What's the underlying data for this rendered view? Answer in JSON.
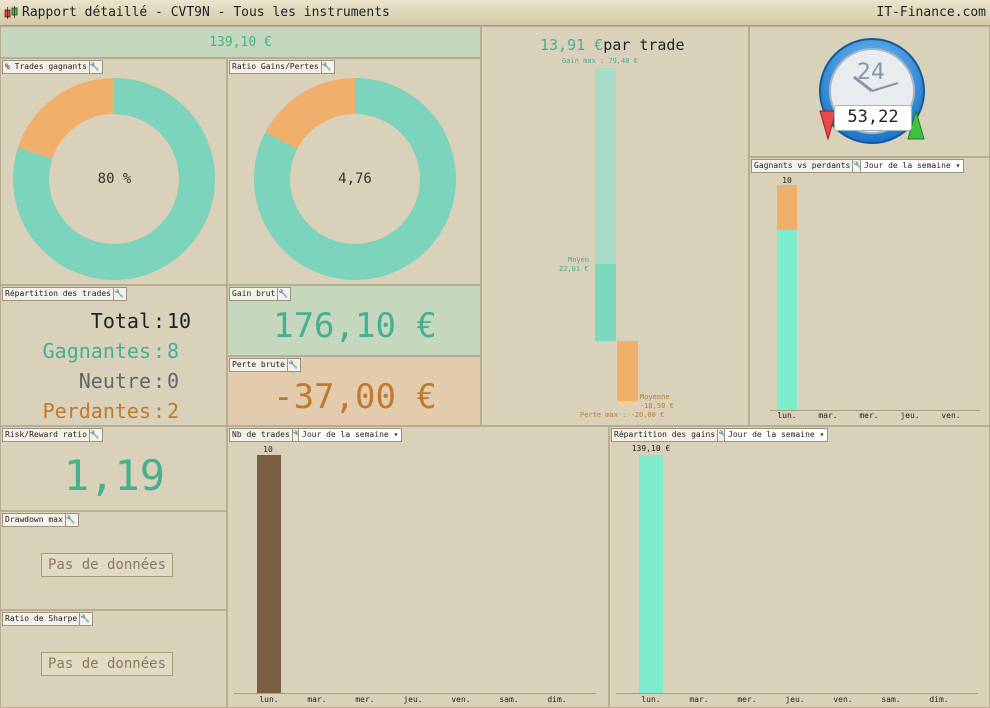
{
  "window": {
    "title": "Rapport détaillé - CVT9N - Tous les instruments",
    "brand": "IT-Finance.com"
  },
  "header_value": "139,10 €",
  "colors": {
    "green": "#46b090",
    "orange": "#c07a30",
    "gray": "#666666",
    "mint": "#7cd4bc",
    "peach": "#f0b06c",
    "brown": "#7a5e44",
    "bright_mint": "#7ceccc"
  },
  "trades_gagnants": {
    "title": "% Trades gagnants",
    "value_label": "80 %",
    "fraction": 0.8
  },
  "ratio_gains_pertes": {
    "title": "Ratio Gains/Pertes",
    "value_label": "4,76",
    "fraction": 0.826
  },
  "repartition": {
    "title": "Répartition des trades",
    "rows": [
      {
        "label": "Total",
        "sep": ":",
        "value": "10"
      },
      {
        "label": "Gagnantes",
        "sep": ":",
        "value": "8"
      },
      {
        "label": "Neutre",
        "sep": ":",
        "value": "0"
      },
      {
        "label": "Perdantes",
        "sep": ":",
        "value": "2"
      }
    ]
  },
  "gain_brut": {
    "title": "Gain brut",
    "value": "176,10 €"
  },
  "perte_brute": {
    "title": "Perte brute",
    "value": "-37,00 €"
  },
  "par_trade": {
    "value": "13,91 €",
    "suffix": "par trade",
    "gain_max": "Gain max : 79,40 €",
    "moyen_label": "Moyen",
    "moyen_value": "22,01 €",
    "moyenne_label": "Moyenne",
    "moyenne_value": "-18,50 €",
    "perte_max": "Perte max : -20,00 €"
  },
  "clock": {
    "number": "24",
    "value": "53,22"
  },
  "gagnants_vs_perdants": {
    "title": "Gagnants vs perdants",
    "select": "Jour de la semaine",
    "top_label": "10",
    "days": [
      "lun.",
      "mar.",
      "mer.",
      "jeu.",
      "ven."
    ]
  },
  "risk_reward": {
    "title": "Risk/Reward ratio",
    "value": "1,19"
  },
  "drawdown": {
    "title": "Drawdown max",
    "nodata": "Pas de données"
  },
  "sharpe": {
    "title": "Ratio de Sharpe",
    "nodata": "Pas de données"
  },
  "nb_trades": {
    "title": "Nb de trades",
    "select": "Jour de la semaine",
    "bar_label": "10",
    "days": [
      "lun.",
      "mar.",
      "mer.",
      "jeu.",
      "ven.",
      "sam.",
      "dim."
    ]
  },
  "repartition_gains": {
    "title": "Répartition des gains",
    "select": "Jour de la semaine",
    "bar_label": "139,10 €",
    "days": [
      "lun.",
      "mar.",
      "mer.",
      "jeu.",
      "ven.",
      "sam.",
      "dim."
    ]
  }
}
